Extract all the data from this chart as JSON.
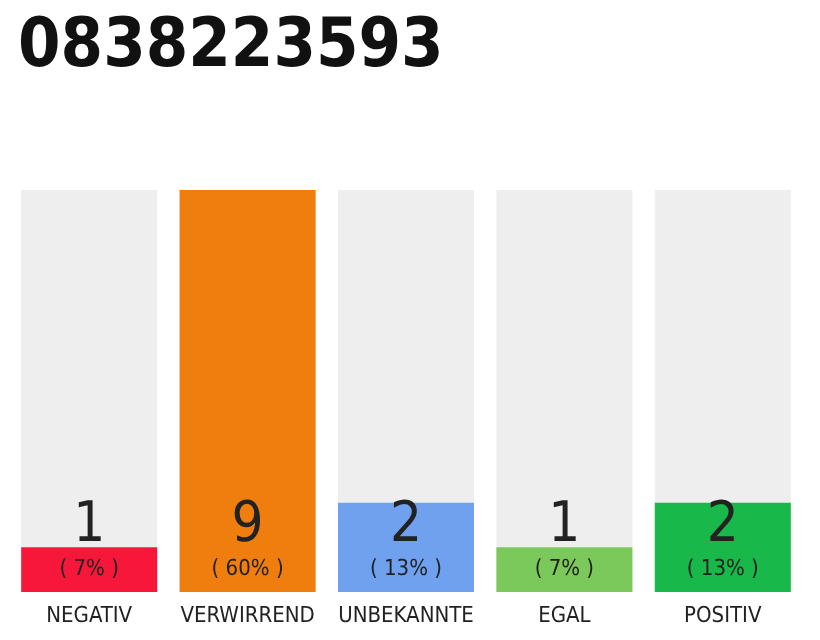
{
  "chart_data": {
    "type": "bar",
    "title": "0838223593",
    "categories": [
      "NEGATIV",
      "VERWIRREND",
      "UNBEKANNTE",
      "EGAL",
      "POSITIV"
    ],
    "values": [
      1,
      9,
      2,
      1,
      2
    ],
    "colors": [
      "#f7173b",
      "#f07e0e",
      "#6fa1ee",
      "#7cc95b",
      "#19b84a"
    ],
    "data_labels": true,
    "annotations": [
      "( 7% )",
      "( 60% )",
      "( 13% )",
      "( 7% )",
      "( 13% )"
    ]
  }
}
